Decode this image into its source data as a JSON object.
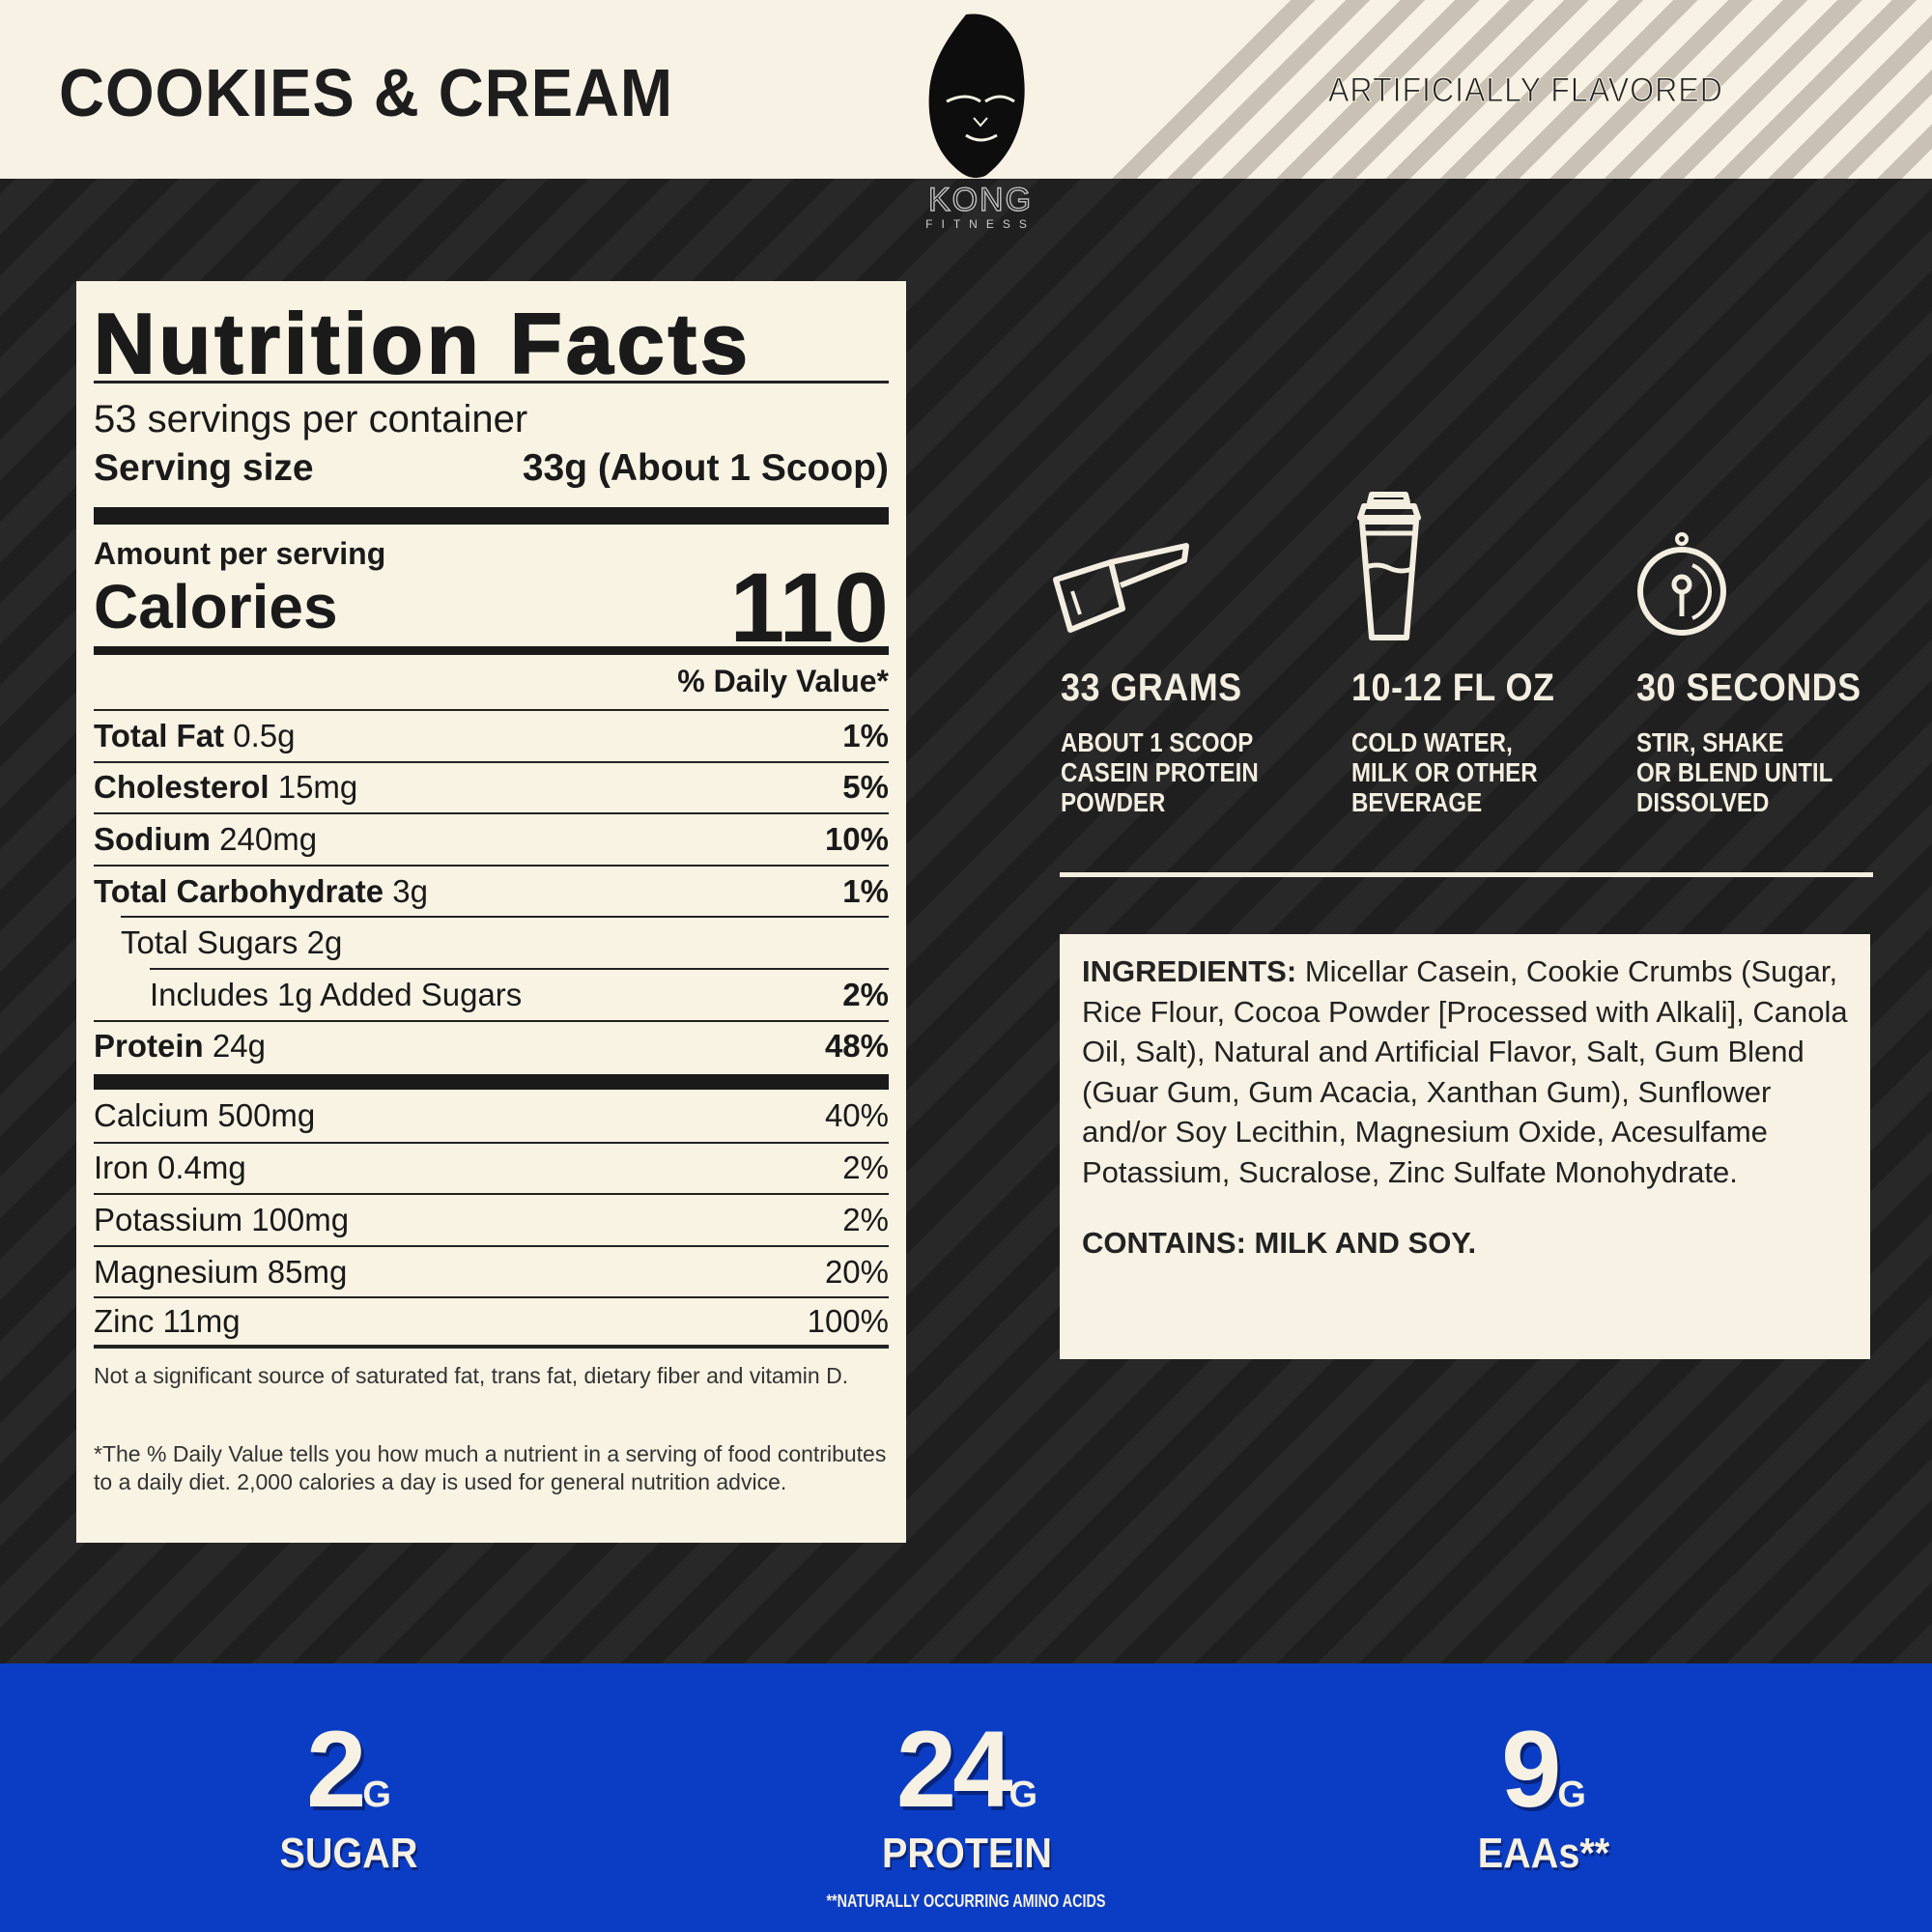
{
  "header": {
    "flavor": "COOKIES & CREAM",
    "claim": "ARTIFICIALLY FLAVORED",
    "logo": {
      "name": "KONG",
      "sub": "FITNESS"
    }
  },
  "nutrition": {
    "title": "Nutrition Facts",
    "servings": "53 servings per container",
    "serving_size_label": "Serving size",
    "serving_size_value": "33g (About 1 Scoop)",
    "amount_label": "Amount per serving",
    "calories_label": "Calories",
    "calories_value": "110",
    "dv_header": "% Daily Value*",
    "rows": [
      {
        "name": "Total Fat",
        "amount": "0.5g",
        "dv": "1%"
      },
      {
        "name": "Cholesterol",
        "amount": "15mg",
        "dv": "5%"
      },
      {
        "name": "Sodium",
        "amount": "240mg",
        "dv": "10%"
      },
      {
        "name": "Total Carbohydrate",
        "amount": "3g",
        "dv": "1%"
      },
      {
        "name": "",
        "amount": "Total Sugars 2g",
        "dv": ""
      },
      {
        "name": "",
        "amount": "Includes 1g Added Sugars",
        "dv": "2%"
      },
      {
        "name": "Protein",
        "amount": "24g",
        "dv": "48%"
      }
    ],
    "minerals": [
      {
        "label": "Calcium 500mg",
        "dv": "40%"
      },
      {
        "label": "Iron 0.4mg",
        "dv": "2%"
      },
      {
        "label": "Potassium 100mg",
        "dv": "2%"
      },
      {
        "label": "Magnesium 85mg",
        "dv": "20%"
      },
      {
        "label": "Zinc 11mg",
        "dv": "100%"
      }
    ],
    "note1": "Not a significant source of saturated fat, trans fat, dietary fiber and vitamin D.",
    "note2": "*The % Daily Value tells you how much a nutrient in a serving of food contributes to a daily diet. 2,000 calories a day is used for general nutrition advice."
  },
  "directions": [
    {
      "icon": "scoop-icon",
      "title": "33 GRAMS",
      "lines": [
        "ABOUT 1 SCOOP",
        "CASEIN PROTEIN",
        "POWDER"
      ]
    },
    {
      "icon": "shaker-icon",
      "title": "10-12 FL OZ",
      "lines": [
        "COLD WATER,",
        "MILK OR OTHER",
        "BEVERAGE"
      ]
    },
    {
      "icon": "timer-icon",
      "title": "30 SECONDS",
      "lines": [
        "STIR, SHAKE",
        "OR BLEND UNTIL",
        "DISSOLVED"
      ]
    }
  ],
  "ingredients": {
    "label": "INGREDIENTS:",
    "text": "Micellar Casein, Cookie Crumbs (Sugar, Rice Flour, Cocoa Powder [Processed with Alkali], Canola Oil, Salt), Natural and Artificial Flavor, Salt, Gum Blend (Guar Gum, Gum Acacia, Xanthan Gum), Sunflower and/or Soy Lecithin, Magnesium Oxide, Acesulfame Potassium, Sucralose, Zinc Sulfate Monohydrate.",
    "contains": "CONTAINS: MILK AND SOY."
  },
  "stats": [
    {
      "value": "2",
      "unit": "G",
      "label": "SUGAR"
    },
    {
      "value": "24",
      "unit": "G",
      "label": "PROTEIN"
    },
    {
      "value": "9",
      "unit": "G",
      "label": "EAAs**"
    }
  ],
  "footnote": "**NATURALLY OCCURRING AMINO ACIDS",
  "colors": {
    "cream": "#f7f2e4",
    "dark": "#242424",
    "blue": "#0b3dc4"
  }
}
